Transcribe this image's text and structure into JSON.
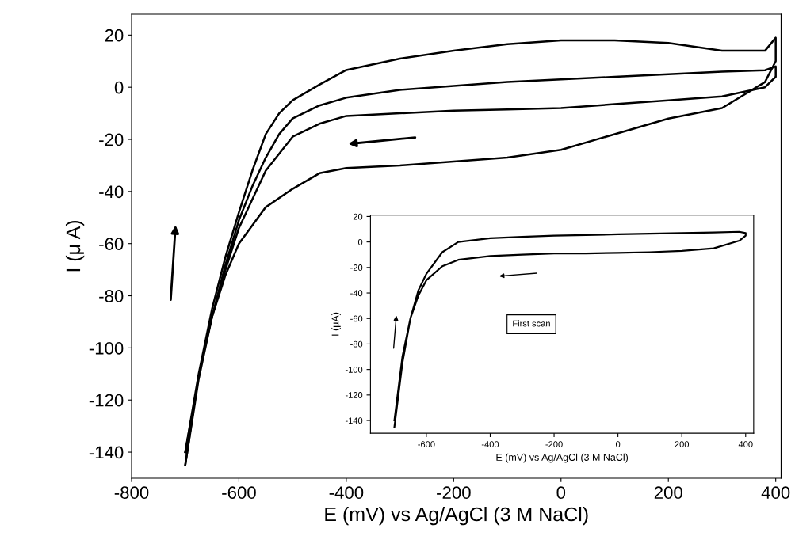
{
  "chart_data": [
    {
      "type": "line",
      "xlabel": "E (mV) vs Ag/AgCl (3 M NaCl)",
      "ylabel": "I (μ A)",
      "xlim": [
        -800,
        410
      ],
      "ylim": [
        -150,
        28
      ],
      "xticks": [
        -800,
        -600,
        -400,
        -200,
        0,
        200,
        400
      ],
      "yticks": [
        -140,
        -120,
        -100,
        -80,
        -60,
        -40,
        -20,
        0,
        20
      ],
      "grid": false,
      "marker": "none",
      "line_style": "solid",
      "series": [
        {
          "color": "#000000",
          "x": [
            -700,
            -675,
            -650,
            -625,
            -600,
            -575,
            -550,
            -525,
            -500,
            -450,
            -400,
            -300,
            -200,
            -100,
            0,
            100,
            200,
            300,
            380,
            400,
            400,
            380,
            300,
            200,
            100,
            0,
            -100,
            -200,
            -300,
            -400,
            -450,
            -500,
            -550,
            -600,
            -625,
            -650,
            -675,
            -700
          ],
          "values": [
            -145,
            -110,
            -85,
            -65,
            -48,
            -32,
            -18,
            -10,
            -5,
            1,
            6.6,
            11,
            14,
            16.5,
            18,
            18,
            17,
            14,
            14,
            19,
            10,
            2,
            -8,
            -12,
            -18,
            -24,
            -27,
            -28.5,
            -30,
            -31,
            -33,
            -39,
            -46,
            -60,
            -72,
            -88,
            -110,
            -140
          ]
        },
        {
          "color": "#000000",
          "x": [
            -700,
            -675,
            -650,
            -625,
            -600,
            -575,
            -550,
            -525,
            -500,
            -450,
            -400,
            -300,
            -200,
            -100,
            0,
            100,
            200,
            300,
            380,
            400,
            400,
            380,
            300,
            200,
            100,
            0,
            -100,
            -200,
            -300,
            -400,
            -450,
            -500,
            -550,
            -600,
            -625,
            -650,
            -675,
            -700
          ],
          "values": [
            -145,
            -112,
            -88,
            -68,
            -51,
            -38,
            -27,
            -18,
            -12,
            -7,
            -4,
            -1,
            0.5,
            2,
            3,
            4,
            5,
            6,
            6.5,
            8,
            4,
            0,
            -3.5,
            -5,
            -6.5,
            -8,
            -8.5,
            -9,
            -10,
            -11,
            -14,
            -19,
            -32,
            -54,
            -70,
            -88,
            -112,
            -140
          ]
        }
      ]
    },
    {
      "type": "line",
      "xlabel": "E (mV) vs Ag/AgCl (3 M NaCl)",
      "ylabel": "I (μA)",
      "xlim": [
        -775,
        425
      ],
      "ylim": [
        -150,
        21
      ],
      "xticks": [
        -600,
        -400,
        -200,
        0,
        200,
        400
      ],
      "yticks": [
        -140,
        -120,
        -100,
        -80,
        -60,
        -40,
        -20,
        0,
        20
      ],
      "grid": false,
      "marker": "none",
      "line_style": "solid",
      "annotations": [
        "First scan"
      ],
      "series": [
        {
          "color": "#000000",
          "x": [
            -700,
            -675,
            -650,
            -625,
            -600,
            -550,
            -500,
            -400,
            -300,
            -200,
            -100,
            0,
            100,
            200,
            300,
            380,
            400,
            400,
            380,
            300,
            200,
            100,
            0,
            -100,
            -200,
            -300,
            -400,
            -500,
            -550,
            -600,
            -625,
            -650,
            -675,
            -700
          ],
          "values": [
            -145,
            -95,
            -60,
            -38,
            -25,
            -8,
            0,
            3,
            4,
            5,
            5.5,
            6,
            6.5,
            7,
            7.5,
            8,
            7,
            5,
            1,
            -5,
            -7,
            -8,
            -8.5,
            -9,
            -9,
            -10,
            -11,
            -14,
            -19,
            -30,
            -42,
            -60,
            -90,
            -140
          ]
        }
      ]
    }
  ]
}
